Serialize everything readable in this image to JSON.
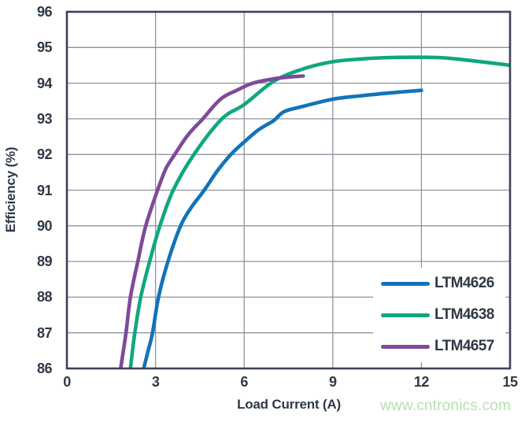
{
  "page": {
    "watermark": "www.cntronics.com"
  },
  "chart_data": {
    "type": "line",
    "title": "",
    "xlabel": "Load Current (A)",
    "ylabel": "Efficiency (%)",
    "xlim": [
      0,
      15
    ],
    "ylim": [
      86,
      96
    ],
    "xticks": [
      0,
      3,
      6,
      9,
      12,
      15
    ],
    "yticks": [
      86,
      87,
      88,
      89,
      90,
      91,
      92,
      93,
      94,
      95,
      96
    ],
    "grid": true,
    "legend_position": "inside-bottom-right",
    "colors": {
      "frame": "#3b4454",
      "gridline": "#8e939d",
      "text": "#2e3947",
      "watermark": "#b7dfb2"
    },
    "series": [
      {
        "name": "LTM4626",
        "color": "#1273b9",
        "points": [
          [
            2.6,
            86
          ],
          [
            2.75,
            86.5
          ],
          [
            2.9,
            87
          ],
          [
            3.1,
            88
          ],
          [
            3.42,
            89
          ],
          [
            3.85,
            90
          ],
          [
            4.2,
            90.5
          ],
          [
            4.65,
            91
          ],
          [
            5.1,
            91.55
          ],
          [
            5.55,
            92
          ],
          [
            6.0,
            92.35
          ],
          [
            6.5,
            92.7
          ],
          [
            7.0,
            92.95
          ],
          [
            7.35,
            93.2
          ],
          [
            8.0,
            93.35
          ],
          [
            9.0,
            93.55
          ],
          [
            10.0,
            93.65
          ],
          [
            11.0,
            93.73
          ],
          [
            12.0,
            93.8
          ]
        ]
      },
      {
        "name": "LTM4638",
        "color": "#0fa87e",
        "points": [
          [
            2.15,
            86
          ],
          [
            2.3,
            87
          ],
          [
            2.5,
            88
          ],
          [
            2.8,
            89
          ],
          [
            3.15,
            90
          ],
          [
            3.6,
            91
          ],
          [
            4.3,
            92
          ],
          [
            5.25,
            93
          ],
          [
            6.0,
            93.4
          ],
          [
            7.0,
            94.05
          ],
          [
            8.0,
            94.4
          ],
          [
            9.0,
            94.6
          ],
          [
            10.0,
            94.68
          ],
          [
            11.0,
            94.72
          ],
          [
            12.5,
            94.72
          ],
          [
            13.5,
            94.65
          ],
          [
            15.0,
            94.5
          ]
        ]
      },
      {
        "name": "LTM4657",
        "color": "#7f4a9a",
        "points": [
          [
            1.82,
            86
          ],
          [
            2.0,
            87
          ],
          [
            2.15,
            88
          ],
          [
            2.4,
            89
          ],
          [
            2.67,
            90
          ],
          [
            3.07,
            91
          ],
          [
            3.35,
            91.6
          ],
          [
            3.65,
            92
          ],
          [
            4.1,
            92.55
          ],
          [
            4.6,
            93
          ],
          [
            5.2,
            93.55
          ],
          [
            5.75,
            93.8
          ],
          [
            6.3,
            94.0
          ],
          [
            7.0,
            94.12
          ],
          [
            7.5,
            94.17
          ],
          [
            8.0,
            94.2
          ]
        ]
      }
    ]
  }
}
